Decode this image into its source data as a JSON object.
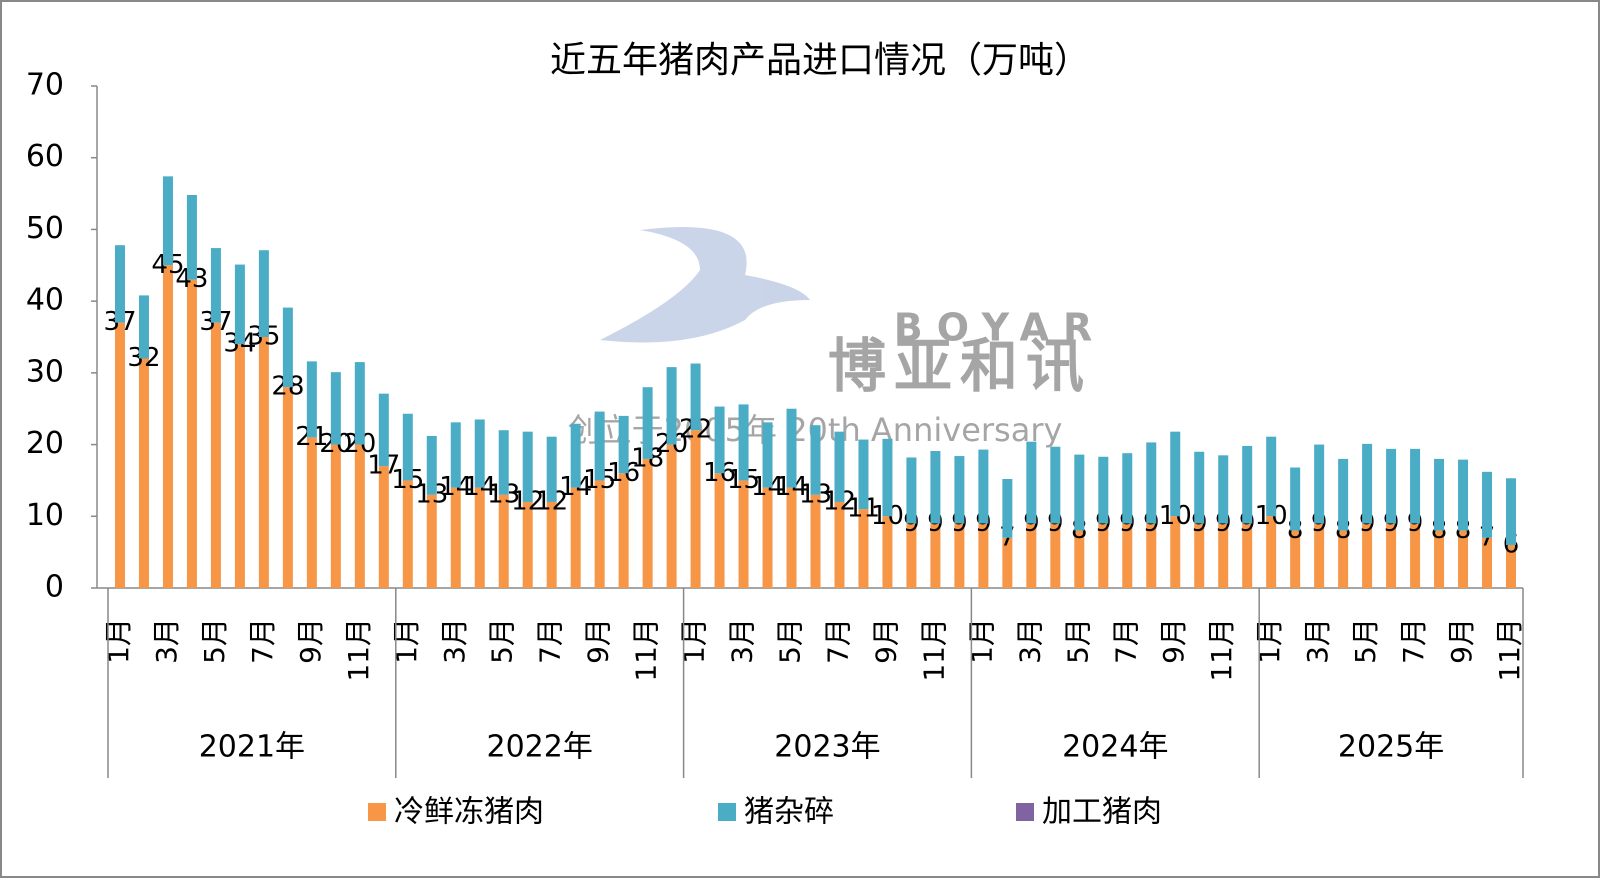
{
  "chart_data": {
    "type": "stacked_bar",
    "title": "近五年猪肉产品进口情况（万吨）",
    "groups": [
      {
        "name": "2021年",
        "categories": [
          "1月",
          null,
          "3月",
          null,
          "5月",
          null,
          "7月",
          null,
          "9月",
          null,
          "11月",
          null
        ]
      },
      {
        "name": "2022年",
        "categories": [
          "1月",
          null,
          "3月",
          null,
          "5月",
          null,
          "7月",
          null,
          "9月",
          null,
          "11月",
          null
        ]
      },
      {
        "name": "2023年",
        "categories": [
          "1月",
          null,
          "3月",
          null,
          "5月",
          null,
          "7月",
          null,
          "9月",
          null,
          "11月",
          null
        ]
      },
      {
        "name": "2024年",
        "categories": [
          "1月",
          null,
          "3月",
          null,
          "5月",
          null,
          "7月",
          null,
          "9月",
          null,
          "11月",
          null
        ]
      },
      {
        "name": "2025年",
        "categories": [
          "1月",
          null,
          "3月",
          null,
          "5月",
          null,
          "7月",
          null,
          "9月",
          null,
          "11月"
        ]
      }
    ],
    "series": [
      {
        "name": "冷鲜冻猪肉",
        "color": "#f79646",
        "data_labels": true,
        "values": [
          37,
          32,
          45,
          43,
          37,
          34,
          35,
          28,
          21,
          20,
          20,
          17,
          15,
          13,
          14,
          14,
          13,
          12,
          12,
          14,
          15,
          16,
          18,
          20,
          22,
          16,
          15,
          14,
          14,
          13,
          12,
          11,
          10,
          9,
          9,
          9,
          9,
          7,
          9,
          9,
          8,
          9,
          9,
          9,
          10,
          9,
          9,
          9,
          10,
          8,
          9,
          8,
          9,
          9,
          9,
          8,
          8,
          7,
          6
        ]
      },
      {
        "name": "猪杂碎",
        "color": "#4bacc6",
        "values": [
          10.8,
          8.8,
          12.4,
          11.8,
          10.4,
          11.1,
          12.1,
          11.1,
          10.6,
          10.1,
          11.5,
          10.1,
          9.3,
          8.2,
          9.1,
          9.5,
          9.0,
          9.8,
          9.1,
          8.9,
          9.6,
          8.0,
          10.0,
          10.8,
          9.3,
          9.3,
          10.6,
          9.1,
          11.0,
          9.7,
          9.8,
          9.7,
          10.8,
          9.2,
          10.1,
          9.4,
          10.3,
          8.2,
          11.4,
          10.7,
          10.6,
          9.3,
          9.8,
          11.3,
          11.8,
          10.0,
          9.5,
          10.8,
          11.1,
          8.8,
          11.0,
          10.0,
          11.1,
          10.4,
          10.4,
          10.0,
          9.9,
          9.2,
          9.3
        ]
      },
      {
        "name": "加工猪肉",
        "color": "#8064a2",
        "values": [
          0,
          0,
          0,
          0,
          0,
          0,
          0,
          0,
          0,
          0,
          0,
          0,
          0,
          0,
          0,
          0,
          0,
          0,
          0,
          0,
          0,
          0,
          0,
          0,
          0,
          0,
          0,
          0,
          0,
          0,
          0,
          0,
          0,
          0,
          0,
          0,
          0,
          0,
          0,
          0,
          0,
          0,
          0,
          0,
          0,
          0,
          0,
          0,
          0,
          0,
          0,
          0,
          0,
          0,
          0,
          0,
          0,
          0,
          0
        ]
      }
    ],
    "ylim": [
      0,
      70
    ],
    "yticks": [
      0,
      10,
      20,
      30,
      40,
      50,
      60,
      70
    ],
    "watermark": {
      "brand": "BOYAR",
      "name": "博亚和讯",
      "slogan": "创立于2005年 20th Anniversary"
    }
  }
}
